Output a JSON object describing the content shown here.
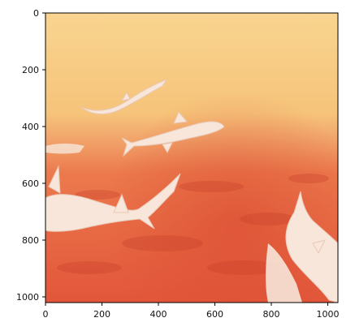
{
  "image": {
    "subject": "sharks swimming over a reef",
    "palette": {
      "sky_top": "#f9d58f",
      "sky_mid": "#f6c37a",
      "sky_bottom": "#f1a36a",
      "water_top": "#ec7a4d",
      "water_bottom": "#e2563a",
      "shark_fill": "#f7e6d9",
      "shark_shadow": "#e9c8b6"
    }
  },
  "axes": {
    "x_ticks": [
      "0",
      "200",
      "400",
      "600",
      "800",
      "1000"
    ],
    "y_ticks": [
      "0",
      "200",
      "400",
      "600",
      "800",
      "1000"
    ]
  }
}
